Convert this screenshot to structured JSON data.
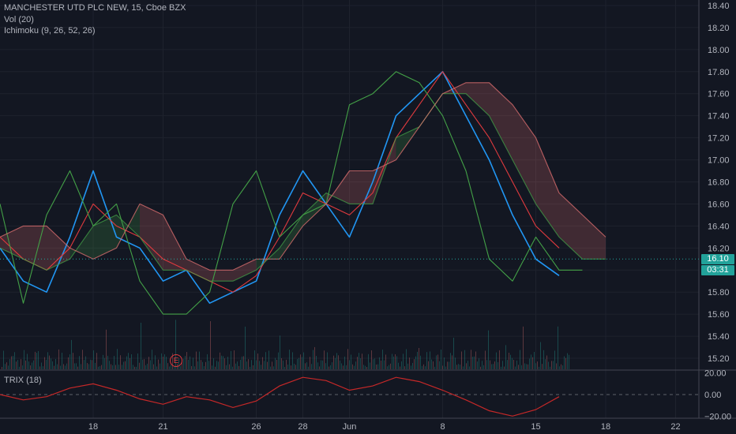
{
  "legend": {
    "symbol_line": "MANCHESTER UTD PLC NEW, 15, Cboe BZX",
    "vol_line": "Vol (20)",
    "ichimoku_line": "Ichimoku (9, 26, 52, 26)",
    "trix_line": "TRIX (18)"
  },
  "price_tag": {
    "last": "16.10",
    "countdown": "03:31"
  },
  "earnings_marker": "E",
  "colors": {
    "background": "#131722",
    "grid": "#1e222d",
    "conversion": "#2196f3",
    "base": "#e03a3e",
    "lagging": "#43a047",
    "lead_a": "#43a047",
    "lead_b": "#e57373",
    "trix": "#c62828",
    "accent": "#22a29a"
  },
  "chart_data": [
    {
      "type": "line",
      "title": "MANCHESTER UTD PLC NEW, 15, Cboe BZX",
      "ylim": [
        15.1,
        18.45
      ],
      "y_ticks": [
        15.2,
        15.4,
        15.6,
        15.8,
        16.0,
        16.2,
        16.4,
        16.6,
        16.8,
        17.0,
        17.2,
        17.4,
        17.6,
        17.8,
        18.0,
        18.2,
        18.4
      ],
      "x_ticks": [
        "18",
        "21",
        "26",
        "28",
        "Jun",
        "8",
        "15",
        "18",
        "22"
      ],
      "x_tick_positions": [
        4,
        7,
        11,
        13,
        15,
        19,
        23,
        26,
        29
      ],
      "xlim": [
        0,
        30
      ],
      "last_price": 16.1,
      "series": [
        {
          "name": "Conversion",
          "x": [
            0,
            1,
            2,
            3,
            4,
            5,
            6,
            7,
            8,
            9,
            10,
            11,
            12,
            13,
            14,
            15,
            16,
            17,
            18,
            19,
            20,
            21,
            22,
            23,
            24
          ],
          "values": [
            16.2,
            15.9,
            15.8,
            16.3,
            16.9,
            16.3,
            16.2,
            15.9,
            16.0,
            15.7,
            15.8,
            15.9,
            16.5,
            16.9,
            16.6,
            16.3,
            16.8,
            17.4,
            17.6,
            17.8,
            17.4,
            17.0,
            16.5,
            16.1,
            15.95
          ]
        },
        {
          "name": "Base",
          "x": [
            0,
            1,
            2,
            3,
            4,
            5,
            6,
            7,
            8,
            9,
            10,
            11,
            12,
            13,
            14,
            15,
            16,
            17,
            18,
            19,
            20,
            21,
            22,
            23,
            24
          ],
          "values": [
            16.3,
            16.1,
            16.0,
            16.2,
            16.6,
            16.4,
            16.3,
            16.1,
            16.0,
            15.9,
            15.8,
            15.95,
            16.3,
            16.7,
            16.6,
            16.5,
            16.7,
            17.2,
            17.5,
            17.8,
            17.5,
            17.2,
            16.8,
            16.4,
            16.2
          ]
        },
        {
          "name": "Lagging",
          "x": [
            0,
            1,
            2,
            3,
            4,
            5,
            6,
            7,
            8,
            9,
            10,
            11,
            12,
            13,
            14,
            15,
            16,
            17,
            18,
            19,
            20,
            21,
            22,
            23,
            24,
            25
          ],
          "values": [
            16.6,
            15.7,
            16.5,
            16.9,
            16.4,
            16.6,
            15.9,
            15.6,
            15.6,
            15.8,
            16.6,
            16.9,
            16.3,
            16.5,
            16.6,
            17.5,
            17.6,
            17.8,
            17.7,
            17.4,
            16.9,
            16.1,
            15.9,
            16.3,
            16.0,
            16.0
          ]
        },
        {
          "name": "Lead A",
          "x": [
            0,
            1,
            2,
            3,
            4,
            5,
            6,
            7,
            8,
            9,
            10,
            11,
            12,
            13,
            14,
            15,
            16,
            17,
            18,
            19,
            20,
            21,
            22,
            23,
            24,
            25,
            26
          ],
          "values": [
            16.2,
            16.1,
            16.0,
            16.1,
            16.4,
            16.5,
            16.3,
            16.0,
            16.0,
            15.9,
            15.9,
            16.0,
            16.2,
            16.5,
            16.7,
            16.6,
            16.6,
            17.2,
            17.3,
            17.6,
            17.6,
            17.4,
            17.0,
            16.6,
            16.3,
            16.1,
            16.1
          ]
        },
        {
          "name": "Lead B",
          "x": [
            0,
            1,
            2,
            3,
            4,
            5,
            6,
            7,
            8,
            9,
            10,
            11,
            12,
            13,
            14,
            15,
            16,
            17,
            18,
            19,
            20,
            21,
            22,
            23,
            24,
            25,
            26
          ],
          "values": [
            16.3,
            16.4,
            16.4,
            16.2,
            16.1,
            16.2,
            16.6,
            16.5,
            16.1,
            16.0,
            16.0,
            16.1,
            16.1,
            16.4,
            16.6,
            16.9,
            16.9,
            17.0,
            17.3,
            17.6,
            17.7,
            17.7,
            17.5,
            17.2,
            16.7,
            16.5,
            16.3
          ]
        }
      ]
    },
    {
      "type": "line",
      "title": "TRIX (18)",
      "ylim": [
        -22,
        22
      ],
      "y_ticks": [
        20.0,
        0.0,
        -20.0
      ],
      "y_tick_labels": [
        "20.00",
        "0.00",
        "−20.00"
      ],
      "xlim": [
        0,
        30
      ],
      "series": [
        {
          "name": "TRIX",
          "x": [
            0,
            1,
            2,
            3,
            4,
            5,
            6,
            7,
            8,
            9,
            10,
            11,
            12,
            13,
            14,
            15,
            16,
            17,
            18,
            19,
            20,
            21,
            22,
            23,
            24
          ],
          "values": [
            0,
            -5,
            -2,
            6,
            10,
            4,
            -4,
            -9,
            -2,
            -5,
            -12,
            -6,
            8,
            16,
            13,
            4,
            8,
            16,
            12,
            4,
            -5,
            -15,
            -20,
            -14,
            -2
          ]
        }
      ]
    }
  ]
}
